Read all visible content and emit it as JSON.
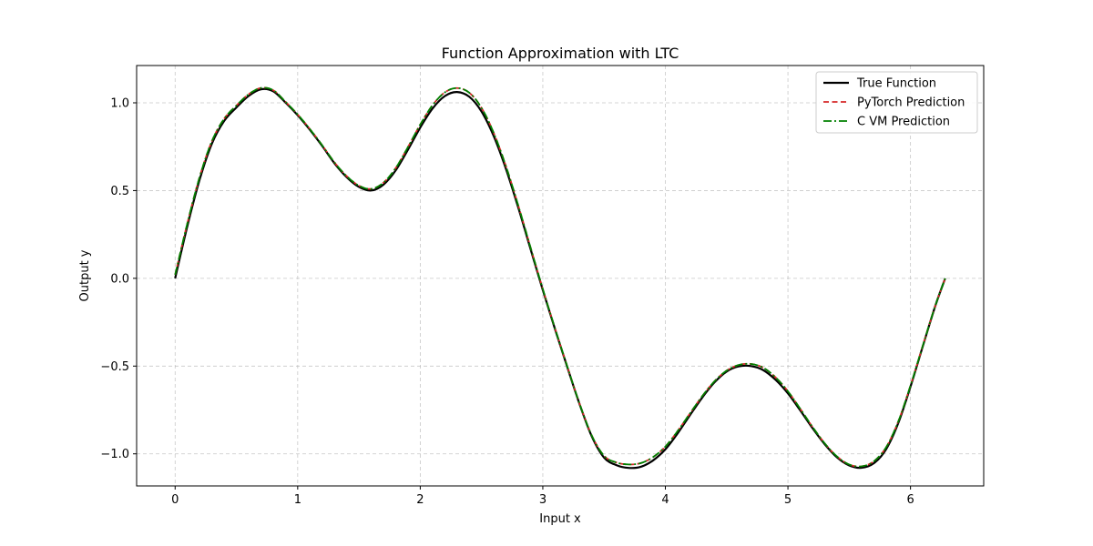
{
  "chart_data": {
    "type": "line",
    "title": "Function Approximation with LTC",
    "xlabel": "Input x",
    "ylabel": "Output y",
    "xlim": [
      -0.3142,
      6.5973
    ],
    "ylim": [
      -1.1829,
      1.2125
    ],
    "xticks": [
      0,
      1,
      2,
      3,
      4,
      5,
      6
    ],
    "yticks": [
      -1.0,
      -0.5,
      0.0,
      0.5,
      1.0
    ],
    "xtick_labels": [
      "0",
      "1",
      "2",
      "3",
      "4",
      "5",
      "6"
    ],
    "ytick_labels": [
      "−1.0",
      "−0.5",
      "0.0",
      "0.5",
      "1.0"
    ],
    "grid": true,
    "legend_position": "upper right",
    "x": [
      0.0,
      0.1,
      0.2,
      0.3,
      0.4,
      0.5,
      0.6,
      0.7,
      0.8,
      0.9,
      1.0,
      1.1,
      1.2,
      1.3,
      1.4,
      1.5,
      1.6,
      1.7,
      1.8,
      1.9,
      2.0,
      2.1,
      2.2,
      2.3,
      2.4,
      2.5,
      2.6,
      2.7,
      2.8,
      2.9,
      3.0,
      3.1,
      3.2,
      3.3,
      3.4,
      3.5,
      3.6,
      3.7,
      3.8,
      3.9,
      4.0,
      4.1,
      4.2,
      4.3,
      4.4,
      4.5,
      4.6,
      4.7,
      4.8,
      4.9,
      5.0,
      5.1,
      5.2,
      5.3,
      5.4,
      5.5,
      5.6,
      5.7,
      5.8,
      5.9,
      6.0,
      6.1,
      6.2,
      6.283
    ],
    "series": [
      {
        "name": "True Function",
        "color": "#000000",
        "style": "solid",
        "values": [
          0.0,
          0.2981,
          0.5625,
          0.7675,
          0.8966,
          0.9735,
          1.0396,
          1.0771,
          1.066,
          1.0019,
          0.9294,
          0.8462,
          0.7541,
          0.6556,
          0.5762,
          0.5209,
          0.5004,
          0.5341,
          0.6155,
          0.7332,
          0.8591,
          0.9672,
          1.0381,
          1.0613,
          1.0346,
          0.9502,
          0.8096,
          0.6221,
          0.4024,
          0.1668,
          -0.0671,
          -0.2904,
          -0.5062,
          -0.7169,
          -0.9014,
          -1.0215,
          -1.0643,
          -1.0803,
          -1.0737,
          -1.0373,
          -0.9744,
          -0.8833,
          -0.7805,
          -0.6801,
          -0.5934,
          -0.531,
          -0.5015,
          -0.5001,
          -0.5237,
          -0.5788,
          -0.6557,
          -0.7519,
          -0.8532,
          -0.9451,
          -1.0198,
          -1.066,
          -1.0793,
          -1.0541,
          -0.975,
          -0.8252,
          -0.6172,
          -0.3881,
          -0.1622,
          0.0
        ]
      },
      {
        "name": "PyTorch Prediction",
        "color": "#d62728",
        "style": "dashed",
        "values": [
          0.02,
          0.3141,
          0.5775,
          0.7815,
          0.9091,
          0.9845,
          1.0486,
          1.0846,
          1.072,
          1.0064,
          0.9334,
          0.8502,
          0.7581,
          0.6606,
          0.5822,
          0.5279,
          0.5094,
          0.5451,
          0.6285,
          0.7482,
          0.8761,
          0.9862,
          1.0591,
          1.0843,
          1.0576,
          0.9712,
          0.8276,
          0.6371,
          0.4144,
          0.1758,
          -0.0611,
          -0.2864,
          -0.5032,
          -0.7149,
          -0.8964,
          -1.0115,
          -1.0493,
          -1.0603,
          -1.0527,
          -1.0183,
          -0.9584,
          -0.8703,
          -0.7705,
          -0.6721,
          -0.5874,
          -0.526,
          -0.4935,
          -0.4881,
          -0.5097,
          -0.5648,
          -0.6437,
          -0.7429,
          -0.8462,
          -0.9401,
          -1.0148,
          -1.061,
          -1.0713,
          -1.0431,
          -0.964,
          -0.8162,
          -0.6112,
          -0.3851,
          -0.1612,
          0.0
        ]
      },
      {
        "name": "C VM Prediction",
        "color": "#008000",
        "style": "dashdot",
        "values": [
          0.02,
          0.3141,
          0.5775,
          0.7815,
          0.9091,
          0.9845,
          1.0486,
          1.0846,
          1.072,
          1.0064,
          0.9334,
          0.8502,
          0.7581,
          0.6606,
          0.5822,
          0.5279,
          0.5094,
          0.5451,
          0.6285,
          0.7482,
          0.8761,
          0.9862,
          1.0591,
          1.0843,
          1.0576,
          0.9712,
          0.8276,
          0.6371,
          0.4144,
          0.1758,
          -0.0611,
          -0.2864,
          -0.5032,
          -0.7149,
          -0.8964,
          -1.0115,
          -1.0493,
          -1.0603,
          -1.0527,
          -1.0183,
          -0.9584,
          -0.8703,
          -0.7705,
          -0.6721,
          -0.5874,
          -0.526,
          -0.4935,
          -0.4881,
          -0.5097,
          -0.5648,
          -0.6437,
          -0.7429,
          -0.8462,
          -0.9401,
          -1.0148,
          -1.061,
          -1.0713,
          -1.0431,
          -0.964,
          -0.8162,
          -0.6112,
          -0.3851,
          -0.1612,
          0.0
        ]
      }
    ]
  }
}
